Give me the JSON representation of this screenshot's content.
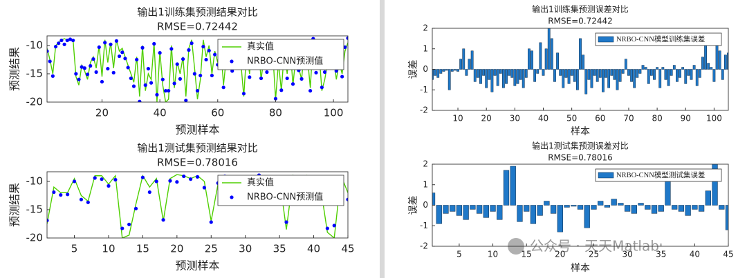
{
  "chart_data": [
    {
      "type": "line",
      "title": "输出1训练集预测结果对比",
      "subtitle": "RMSE=0.72442",
      "x_label": "预测样本",
      "y_label": "预测结果",
      "x": [
        1,
        2,
        3,
        4,
        5,
        6,
        7,
        8,
        9,
        10,
        11,
        12,
        13,
        14,
        15,
        16,
        17,
        18,
        19,
        20,
        21,
        22,
        23,
        24,
        25,
        26,
        27,
        28,
        29,
        30,
        31,
        32,
        33,
        34,
        35,
        36,
        37,
        38,
        39,
        40,
        41,
        42,
        43,
        44,
        45,
        46,
        47,
        48,
        49,
        50,
        51,
        52,
        53,
        54,
        55,
        56,
        57,
        58,
        59,
        60,
        61,
        62,
        63,
        64,
        65,
        66,
        67,
        68,
        69,
        70,
        71,
        72,
        73,
        74,
        75,
        76,
        77,
        78,
        79,
        80,
        81,
        82,
        83,
        84,
        85,
        86,
        87,
        88,
        89,
        90,
        91,
        92,
        93,
        94,
        95,
        96,
        97,
        98,
        99,
        100,
        101,
        102,
        103,
        104,
        105
      ],
      "series": [
        {
          "name": "真实值",
          "color": "#4fcf00",
          "style": "line",
          "values": [
            -10.5,
            -12.5,
            -15.0,
            -10.0,
            -9.5,
            -9.0,
            -8.8,
            -9.0,
            -8.8,
            -9.0,
            -15.5,
            -17.0,
            -13.5,
            -14.5,
            -16.0,
            -13.0,
            -12.0,
            -14.0,
            -10.0,
            -15.5,
            -9.0,
            -13.0,
            -9.5,
            -14.0,
            -9.0,
            -11.0,
            -10.5,
            -12.0,
            -13.5,
            -15.0,
            -16.5,
            -12.0,
            -19.0,
            -10.0,
            -18.0,
            -15.0,
            -16.0,
            -9.5,
            -20.0,
            -11.0,
            -17.0,
            -20.0,
            -19.5,
            -10.0,
            -17.5,
            -13.0,
            -15.0,
            -12.0,
            -19.0,
            -10.5,
            -9.0,
            -14.0,
            -19.5,
            -16.0,
            -9.0,
            -12.0,
            -10.0,
            -15.0,
            -11.0,
            -13.0,
            -10.0,
            -17.0,
            -12.0,
            -9.5,
            -14.0,
            -9.0,
            -11.0,
            -13.0,
            -19.0,
            -11.0,
            -15.0,
            -9.5,
            -13.0,
            -10.0,
            -16.0,
            -12.0,
            -14.0,
            -9.0,
            -11.0,
            -19.5,
            -13.0,
            -18.0,
            -11.0,
            -15.0,
            -10.0,
            -17.0,
            -12.0,
            -14.0,
            -16.0,
            -10.0,
            -12.0,
            -17.5,
            -9.0,
            -14.0,
            -11.0,
            -18.0,
            -16.0,
            -13.0,
            -9.5,
            -12.0,
            -16.0,
            -13.0,
            -15.0,
            -11.0,
            -9.5
          ]
        },
        {
          "name": "NRBO-CNN预测值",
          "color": "#0000ff",
          "style": "markers",
          "values": [
            -11.0,
            -12.8,
            -15.4,
            -10.2,
            -9.6,
            -9.1,
            -9.8,
            -9.1,
            -8.9,
            -9.1,
            -15.0,
            -16.0,
            -13.8,
            -14.0,
            -15.1,
            -13.6,
            -12.4,
            -14.7,
            -10.3,
            -16.4,
            -9.5,
            -14.1,
            -9.8,
            -14.8,
            -9.2,
            -11.9,
            -11.2,
            -12.3,
            -13.9,
            -15.8,
            -17.2,
            -12.5,
            -19.9,
            -10.4,
            -17.0,
            -14.1,
            -16.6,
            -9.7,
            -18.7,
            -11.3,
            -16.0,
            -18.0,
            -18.0,
            -10.6,
            -16.7,
            -13.3,
            -15.9,
            -12.4,
            -19.7,
            -10.8,
            -9.6,
            -15.0,
            -18.0,
            -15.3,
            -10.2,
            -12.5,
            -10.9,
            -15.3,
            -11.6,
            -13.4,
            -11.1,
            -17.4,
            -12.9,
            -9.8,
            -14.5,
            -10.0,
            -11.6,
            -13.2,
            -18.5,
            -11.3,
            -15.6,
            -10.4,
            -13.4,
            -10.2,
            -15.8,
            -11.9,
            -14.7,
            -9.3,
            -11.5,
            -19.4,
            -13.9,
            -17.9,
            -11.5,
            -15.8,
            -10.3,
            -16.8,
            -12.6,
            -14.4,
            -15.9,
            -10.7,
            -12.3,
            -18.0,
            -8.8,
            -14.8,
            -11.4,
            -17.4,
            -14.7,
            -12.7,
            -9.4,
            -12.6,
            -14.5,
            -12.1,
            -15.5,
            -10.3,
            -8.7
          ]
        }
      ],
      "xlim": [
        1,
        105
      ],
      "xticks": [
        20,
        40,
        60,
        80,
        100
      ],
      "ylim": [
        -20,
        -8.3
      ],
      "yticks": [
        -20,
        -15,
        -10
      ],
      "grid": false,
      "legend": "upper right"
    },
    {
      "type": "line",
      "title": "输出1测试集预测结果对比",
      "subtitle": "RMSE=0.78016",
      "x_label": "预测样本",
      "y_label": "预测结果",
      "x": [
        1,
        2,
        3,
        4,
        5,
        6,
        7,
        8,
        9,
        10,
        11,
        12,
        13,
        14,
        15,
        16,
        17,
        18,
        19,
        20,
        21,
        22,
        23,
        24,
        25,
        26,
        27,
        28,
        29,
        30,
        31,
        32,
        33,
        34,
        35,
        36,
        37,
        38,
        39,
        40,
        41,
        42,
        43,
        44,
        45
      ],
      "series": [
        {
          "name": "真实值",
          "color": "#4fcf00",
          "style": "line",
          "values": [
            -17.5,
            -11.0,
            -12.0,
            -12.0,
            -9.5,
            -12.5,
            -13.5,
            -9.0,
            -9.0,
            -10.5,
            -9.0,
            -20.0,
            -19.5,
            -14.0,
            -9.0,
            -11.0,
            -9.5,
            -17.0,
            -9.5,
            -8.8,
            -9.0,
            -9.5,
            -9.0,
            -10.0,
            -17.0,
            -10.5,
            -9.0,
            -11.5,
            -13.0,
            -9.5,
            -12.0,
            -9.0,
            -12.5,
            -11.0,
            -9.5,
            -18.5,
            -9.0,
            -11.0,
            -9.0,
            -13.0,
            -11.0,
            -19.0,
            -20.0,
            -9.0,
            -12.0
          ]
        },
        {
          "name": "NRBO-CNN预测值",
          "color": "#0000ff",
          "style": "markers",
          "values": [
            -16.9,
            -11.9,
            -12.4,
            -12.3,
            -10.0,
            -13.2,
            -13.7,
            -9.4,
            -9.6,
            -10.8,
            -9.7,
            -18.3,
            -17.6,
            -14.8,
            -9.3,
            -11.9,
            -10.0,
            -16.8,
            -9.9,
            -10.1,
            -9.1,
            -9.6,
            -9.2,
            -11.1,
            -17.2,
            -10.3,
            -9.1,
            -11.2,
            -12.9,
            -9.8,
            -12.4,
            -8.9,
            -12.7,
            -11.4,
            -9.8,
            -17.2,
            -9.2,
            -11.3,
            -9.5,
            -13.2,
            -11.3,
            -18.3,
            -17.8,
            -9.2,
            -13.2
          ]
        }
      ],
      "xlim": [
        1,
        45
      ],
      "xticks": [
        5,
        10,
        15,
        20,
        25,
        30,
        35,
        40,
        45
      ],
      "ylim": [
        -20,
        -8.3
      ],
      "yticks": [
        -20,
        -15,
        -10
      ],
      "grid": false,
      "legend": "upper right"
    },
    {
      "type": "bar",
      "title": "输出1训练集预测误差对比",
      "subtitle": "RMSE=0.72442",
      "x_label": "样本",
      "y_label": "误差",
      "x": [
        1,
        2,
        3,
        4,
        5,
        6,
        7,
        8,
        9,
        10,
        11,
        12,
        13,
        14,
        15,
        16,
        17,
        18,
        19,
        20,
        21,
        22,
        23,
        24,
        25,
        26,
        27,
        28,
        29,
        30,
        31,
        32,
        33,
        34,
        35,
        36,
        37,
        38,
        39,
        40,
        41,
        42,
        43,
        44,
        45,
        46,
        47,
        48,
        49,
        50,
        51,
        52,
        53,
        54,
        55,
        56,
        57,
        58,
        59,
        60,
        61,
        62,
        63,
        64,
        65,
        66,
        67,
        68,
        69,
        70,
        71,
        72,
        73,
        74,
        75,
        76,
        77,
        78,
        79,
        80,
        81,
        82,
        83,
        84,
        85,
        86,
        87,
        88,
        89,
        90,
        91,
        92,
        93,
        94,
        95,
        96,
        97,
        98,
        99,
        100,
        101,
        102,
        103,
        104,
        105
      ],
      "series": [
        {
          "name": "NRBO-CNN模型训练集误差",
          "color": "#1f78c8",
          "values": [
            -0.5,
            -0.3,
            -0.4,
            -0.2,
            -0.1,
            -0.05,
            -1.0,
            -0.1,
            -0.05,
            -0.1,
            0.5,
            1.0,
            -0.3,
            0.5,
            0.9,
            -0.6,
            -0.4,
            -0.7,
            -0.3,
            -0.9,
            -0.5,
            -1.1,
            -0.3,
            -0.8,
            -0.2,
            -0.9,
            -0.7,
            -0.3,
            -0.4,
            -0.8,
            -0.7,
            -0.5,
            -0.9,
            -0.4,
            1.0,
            0.9,
            -0.6,
            -0.2,
            1.3,
            -0.3,
            1.0,
            2.0,
            1.5,
            -0.6,
            0.8,
            -0.3,
            -0.9,
            -0.4,
            -0.7,
            -0.3,
            -0.6,
            -1.0,
            1.5,
            0.7,
            -1.2,
            -0.5,
            -0.9,
            -0.3,
            -0.6,
            -0.4,
            -1.1,
            -0.4,
            -0.9,
            -0.3,
            -0.5,
            -1.0,
            -0.6,
            -0.2,
            0.5,
            -0.3,
            -0.6,
            -0.9,
            -0.4,
            -0.2,
            0.2,
            0.1,
            -0.7,
            -0.3,
            -0.5,
            0.1,
            -0.9,
            0.1,
            -0.5,
            -0.8,
            -0.3,
            0.2,
            -0.6,
            -0.4,
            0.1,
            -0.7,
            -0.3,
            -0.5,
            0.2,
            -0.8,
            -0.4,
            0.6,
            1.3,
            0.3,
            0.1,
            -0.6,
            1.5,
            0.9,
            -0.5,
            0.7,
            0.8
          ]
        }
      ],
      "xlim": [
        1,
        105
      ],
      "xticks": [
        10,
        20,
        30,
        40,
        50,
        60,
        70,
        80,
        90,
        100
      ],
      "ylim": [
        -2,
        2
      ],
      "yticks": [
        -2,
        -1,
        0,
        1,
        2
      ],
      "grid": false,
      "legend": "upper right"
    },
    {
      "type": "bar",
      "title": "输出1测试集预测误差对比",
      "subtitle": "RMSE=0.78016",
      "x_label": "样本",
      "y_label": "误差",
      "x": [
        1,
        2,
        3,
        4,
        5,
        6,
        7,
        8,
        9,
        10,
        11,
        12,
        13,
        14,
        15,
        16,
        17,
        18,
        19,
        20,
        21,
        22,
        23,
        24,
        25,
        26,
        27,
        28,
        29,
        30,
        31,
        32,
        33,
        34,
        35,
        36,
        37,
        38,
        39,
        40,
        41,
        42,
        43,
        44,
        45
      ],
      "series": [
        {
          "name": "NRBO-CNN模型测试集误差",
          "color": "#1f78c8",
          "values": [
            0.6,
            -0.9,
            -0.4,
            -0.3,
            -0.5,
            -0.7,
            -0.2,
            -0.4,
            -0.6,
            -0.3,
            -0.7,
            1.7,
            1.9,
            -0.8,
            -0.3,
            -0.9,
            -0.5,
            0.2,
            -0.4,
            -1.3,
            -0.1,
            -0.05,
            -0.2,
            -1.1,
            -0.2,
            0.2,
            -0.1,
            0.3,
            0.1,
            -0.3,
            -0.4,
            0.1,
            -0.2,
            -0.4,
            -0.3,
            1.3,
            -0.2,
            -0.3,
            -0.5,
            -0.2,
            -0.3,
            0.7,
            2.2,
            -0.2,
            -1.2
          ]
        }
      ],
      "xlim": [
        1,
        45
      ],
      "xticks": [
        5,
        10,
        15,
        20,
        25,
        30,
        35,
        40,
        45
      ],
      "ylim": [
        -2,
        2
      ],
      "yticks": [
        -2,
        -1,
        0,
        1,
        2
      ],
      "grid": false,
      "legend": "upper right"
    }
  ],
  "watermark": "公众号 · 天天Matlab"
}
